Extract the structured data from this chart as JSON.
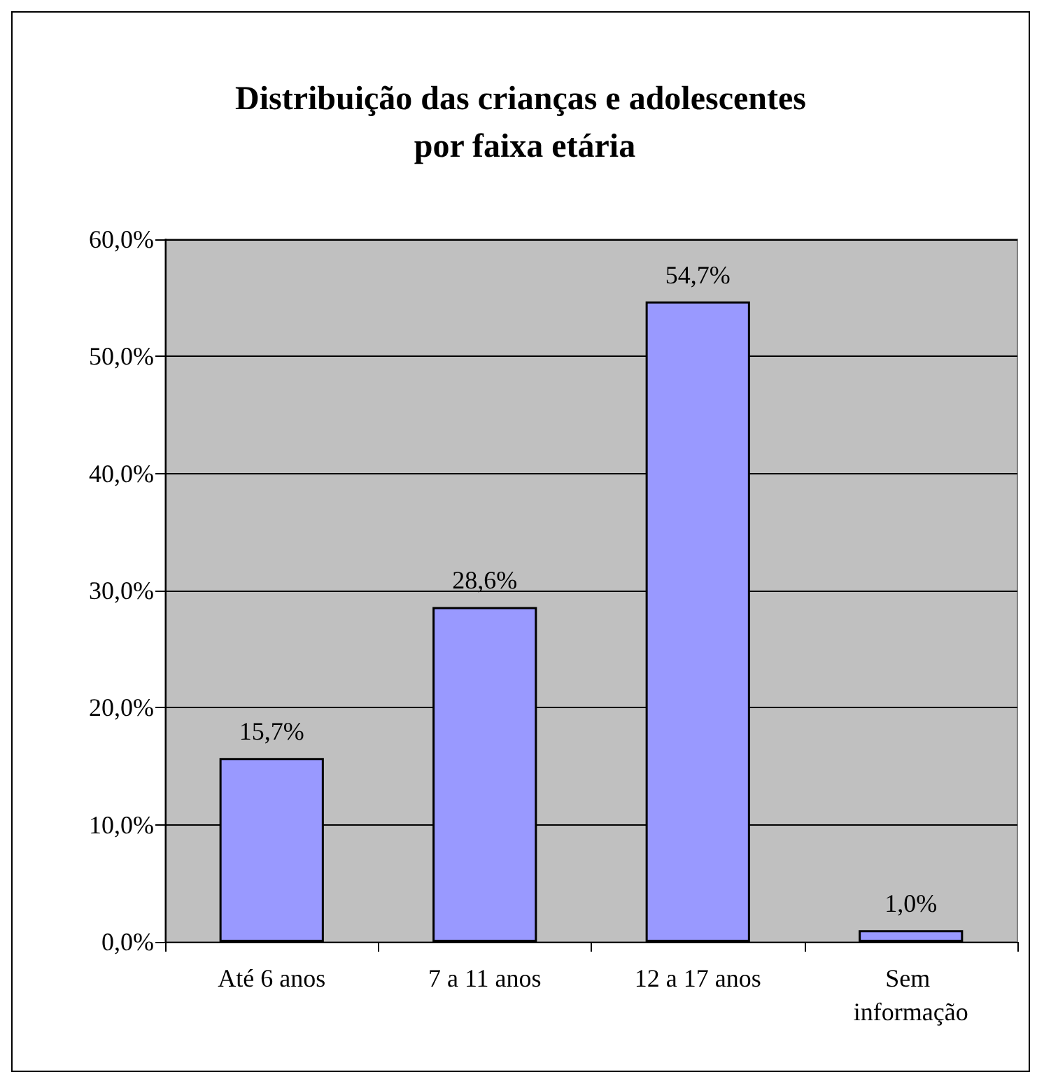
{
  "chart_data": {
    "type": "bar",
    "title": "Distribuição das crianças e adolescentes por faixa etária",
    "categories": [
      "Até 6 anos",
      "7 a 11 anos",
      "12 a 17 anos",
      "Sem informação"
    ],
    "values": [
      15.7,
      28.6,
      54.7,
      1.0
    ],
    "value_labels": [
      "15,7%",
      "28,6%",
      "54,7%",
      "1,0%"
    ],
    "color": "#9999ff",
    "ylim": [
      0,
      60
    ],
    "yticks": [
      {
        "value": 0,
        "label": "0,0%"
      },
      {
        "value": 10,
        "label": "10,0%"
      },
      {
        "value": 20,
        "label": "20,0%"
      },
      {
        "value": 30,
        "label": "30,0%"
      },
      {
        "value": 40,
        "label": "40,0%"
      },
      {
        "value": 50,
        "label": "50,0%"
      },
      {
        "value": 60,
        "label": "60,0%"
      }
    ],
    "grid": "y"
  }
}
